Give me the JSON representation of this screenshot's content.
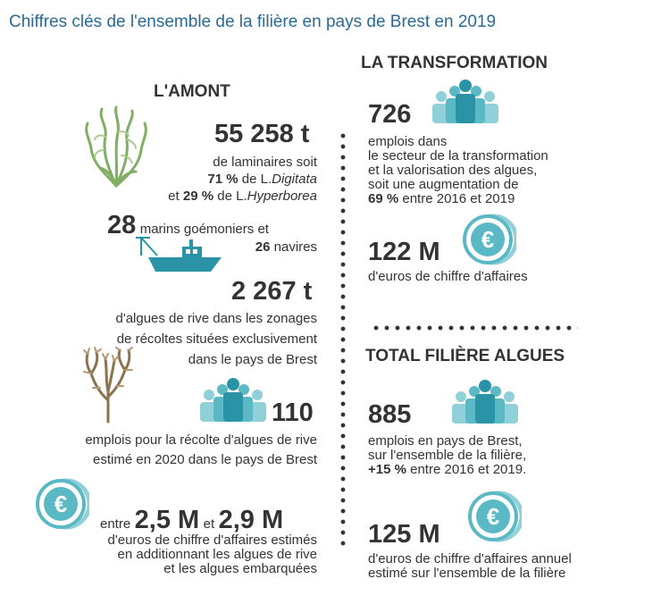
{
  "title": "Chiffres clés de l'ensemble de la filière en pays de Brest en 2019",
  "amont": {
    "heading": "L'AMONT",
    "laminaires": {
      "value": "55 258 t",
      "line1": "de laminaires soit",
      "line2_pct": "71 %",
      "line2_pre": "de L.",
      "line2_species": "Digitata",
      "line3_pre": "et",
      "line3_pct": "29 %",
      "line3_mid": "de L.",
      "line3_species": "Hyperborea"
    },
    "marins": {
      "value": "28",
      "text1": "marins goémoniers et",
      "navires_value": "26",
      "navires_text": "navires"
    },
    "rive": {
      "value": "2 267 t",
      "line1": "d'algues de rive dans les zonages",
      "line2": "de récoltes situées exclusivement",
      "line3": "dans le pays de Brest"
    },
    "emplois_rive": {
      "value": "110",
      "line1": "emplois pour la récolte d'algues de rive",
      "line2": "estimé en 2020 dans le pays de Brest"
    },
    "ca": {
      "pre": "entre",
      "low": "2,5 M",
      "mid": "et",
      "high": "2,9 M",
      "line1": "d'euros de chiffre d'affaires estimés",
      "line2": "en additionnant les algues de rive",
      "line3": "et les algues embarquées"
    }
  },
  "transformation": {
    "heading": "LA TRANSFORMATION",
    "emplois": {
      "value": "726",
      "line1": "emplois  dans",
      "line2": "le secteur de la transformation",
      "line3": "et la valorisation des algues,",
      "line4": "soit une augmentation de",
      "line5_pct": "69 %",
      "line5_rest": "entre 2016 et 2019"
    },
    "ca": {
      "value": "122 M",
      "line1": "d'euros de chiffre d'affaires"
    }
  },
  "total": {
    "heading": "TOTAL FILIÈRE ALGUES",
    "emplois": {
      "value": "885",
      "line1": "emplois en pays de Brest,",
      "line2": "sur l'ensemble de la filière,",
      "line3_pct": "+15 %",
      "line3_rest": "entre 2016 et 2019."
    },
    "ca": {
      "value": "125 M",
      "line1": "d'euros de chiffre d'affaires annuel",
      "line2": "estimé sur l'ensemble de la filière"
    }
  },
  "icons": {
    "euro_symbol": "€",
    "colors": {
      "teal": "#5bb8c5",
      "teal_light": "#8fd0d9",
      "teal_dark": "#2a93a6",
      "seaweed": "#7fae64",
      "seaweed_brown": "#8b7350",
      "title_blue": "#2a6a96"
    }
  }
}
